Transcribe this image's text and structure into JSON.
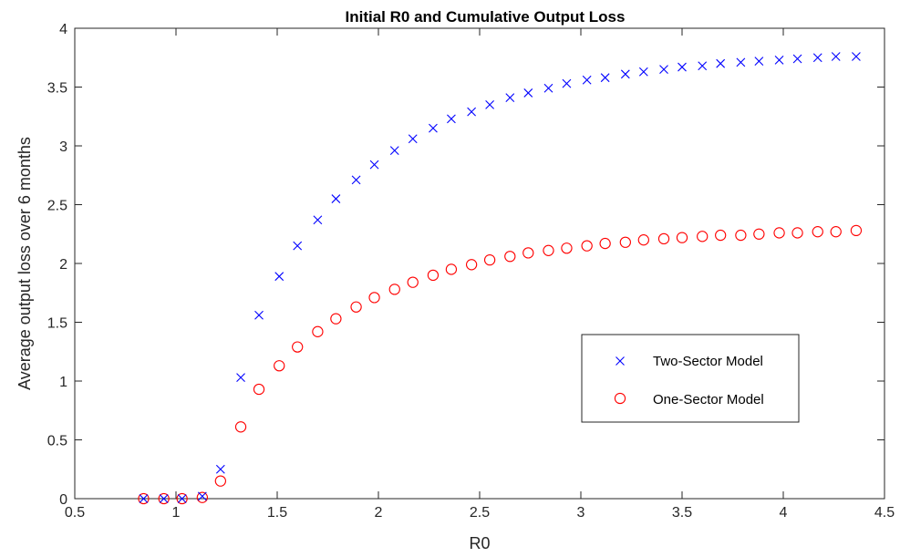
{
  "chart_data": {
    "type": "scatter",
    "title": "Initial R0 and Cumulative Output Loss",
    "xlabel": "R0",
    "ylabel": "Average output loss over 6 months",
    "xlim": [
      0.5,
      4.5
    ],
    "ylim": [
      0,
      4
    ],
    "xticks": [
      "0.5",
      "1",
      "1.5",
      "2",
      "2.5",
      "3",
      "3.5",
      "4",
      "4.5"
    ],
    "yticks": [
      "0",
      "0.5",
      "1",
      "1.5",
      "2",
      "2.5",
      "3",
      "3.5",
      "4"
    ],
    "grid": false,
    "legend_position": "center-right",
    "series": [
      {
        "name": "Two-Sector Model",
        "marker": "x",
        "color": "#0000ff",
        "x": [
          0.84,
          0.94,
          1.03,
          1.13,
          1.22,
          1.32,
          1.41,
          1.51,
          1.6,
          1.7,
          1.79,
          1.89,
          1.98,
          2.08,
          2.17,
          2.27,
          2.36,
          2.46,
          2.55,
          2.65,
          2.74,
          2.84,
          2.93,
          3.03,
          3.12,
          3.22,
          3.31,
          3.41,
          3.5,
          3.6,
          3.69,
          3.79,
          3.88,
          3.98,
          4.07,
          4.17,
          4.26,
          4.36
        ],
        "y": [
          0.0,
          0.0,
          0.0,
          0.02,
          0.25,
          1.03,
          1.56,
          1.89,
          2.15,
          2.37,
          2.55,
          2.71,
          2.84,
          2.96,
          3.06,
          3.15,
          3.23,
          3.29,
          3.35,
          3.41,
          3.45,
          3.49,
          3.53,
          3.56,
          3.58,
          3.61,
          3.63,
          3.65,
          3.67,
          3.68,
          3.7,
          3.71,
          3.72,
          3.73,
          3.74,
          3.75,
          3.76,
          3.76
        ]
      },
      {
        "name": "One-Sector Model",
        "marker": "o",
        "color": "#ff0000",
        "x": [
          0.84,
          0.94,
          1.03,
          1.13,
          1.22,
          1.32,
          1.41,
          1.51,
          1.6,
          1.7,
          1.79,
          1.89,
          1.98,
          2.08,
          2.17,
          2.27,
          2.36,
          2.46,
          2.55,
          2.65,
          2.74,
          2.84,
          2.93,
          3.03,
          3.12,
          3.22,
          3.31,
          3.41,
          3.5,
          3.6,
          3.69,
          3.79,
          3.88,
          3.98,
          4.07,
          4.17,
          4.26,
          4.36
        ],
        "y": [
          0.0,
          0.0,
          0.0,
          0.01,
          0.15,
          0.61,
          0.93,
          1.13,
          1.29,
          1.42,
          1.53,
          1.63,
          1.71,
          1.78,
          1.84,
          1.9,
          1.95,
          1.99,
          2.03,
          2.06,
          2.09,
          2.11,
          2.13,
          2.15,
          2.17,
          2.18,
          2.2,
          2.21,
          2.22,
          2.23,
          2.24,
          2.24,
          2.25,
          2.26,
          2.26,
          2.27,
          2.27,
          2.28
        ]
      }
    ]
  }
}
